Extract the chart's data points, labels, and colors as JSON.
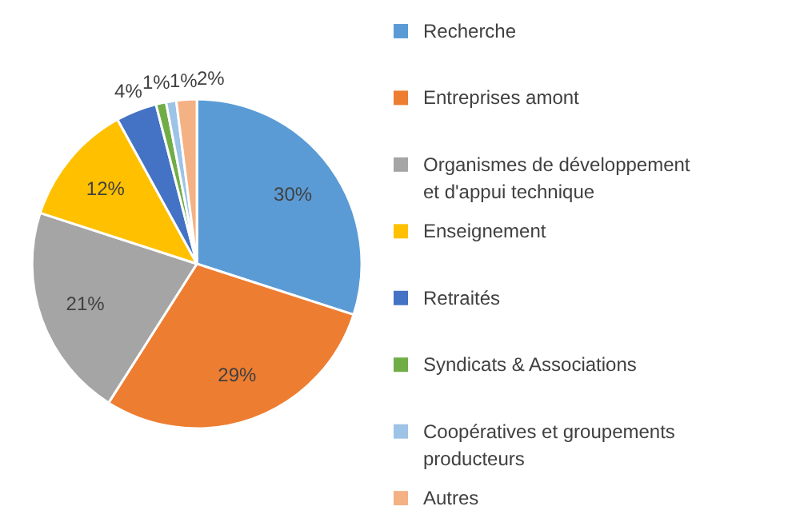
{
  "chart_data": {
    "type": "pie",
    "categories": [
      "Recherche",
      "Entreprises amont",
      "Organismes de développement et d'appui technique",
      "Enseignement",
      "Retraités",
      "Syndicats & Associations",
      "Coopératives et groupements producteurs",
      "Autres"
    ],
    "values": [
      30,
      29,
      21,
      12,
      4,
      1,
      1,
      2
    ],
    "value_labels": [
      "30%",
      "29%",
      "21%",
      "12%",
      "4%",
      "1%",
      "1%",
      "2%"
    ],
    "colors": [
      "#5b9bd5",
      "#ed7d31",
      "#a5a5a5",
      "#ffc000",
      "#4472c4",
      "#70ad47",
      "#9dc3e6",
      "#f4b183"
    ],
    "legend": "right"
  }
}
